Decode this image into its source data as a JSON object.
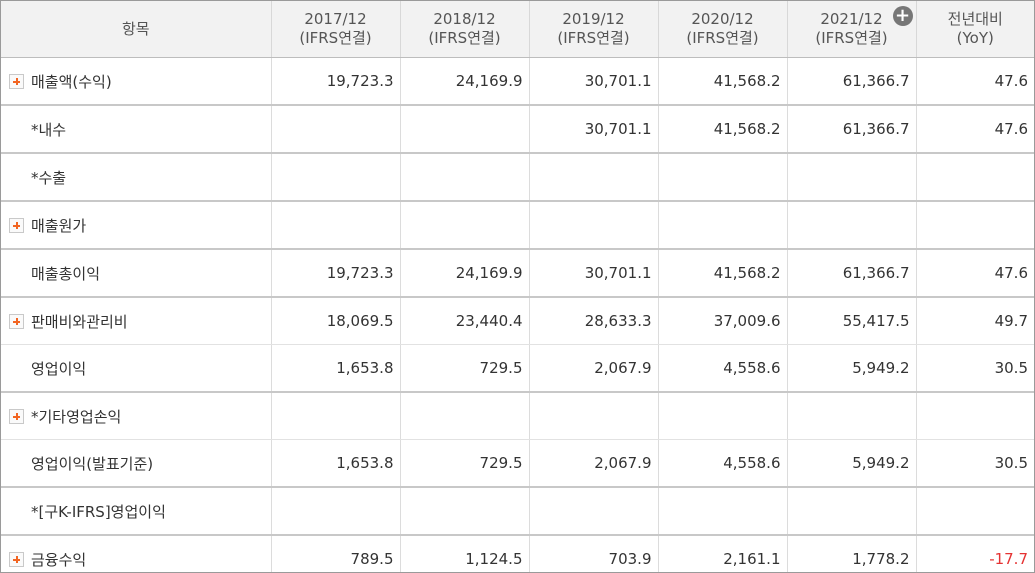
{
  "header": {
    "item_label": "항목",
    "periods": [
      {
        "year": "2017/12",
        "basis": "(IFRS연결)"
      },
      {
        "year": "2018/12",
        "basis": "(IFRS연결)"
      },
      {
        "year": "2019/12",
        "basis": "(IFRS연결)"
      },
      {
        "year": "2020/12",
        "basis": "(IFRS연결)"
      },
      {
        "year": "2021/12",
        "basis": "(IFRS연결)"
      }
    ],
    "yoy_line1": "전년대비",
    "yoy_line2": "(YoY)",
    "more_icon": "plus-circle-icon"
  },
  "rows": [
    {
      "label": "매출액(수익)",
      "expandable": true,
      "values": [
        "19,723.3",
        "24,169.9",
        "30,701.1",
        "41,568.2",
        "61,366.7"
      ],
      "yoy": "47.6"
    },
    {
      "label": "*내수",
      "expandable": false,
      "values": [
        "",
        "",
        "30,701.1",
        "41,568.2",
        "61,366.7"
      ],
      "yoy": "47.6"
    },
    {
      "label": "*수출",
      "expandable": false,
      "values": [
        "",
        "",
        "",
        "",
        ""
      ],
      "yoy": ""
    },
    {
      "label": "매출원가",
      "expandable": true,
      "values": [
        "",
        "",
        "",
        "",
        ""
      ],
      "yoy": ""
    },
    {
      "label": "매출총이익",
      "expandable": false,
      "values": [
        "19,723.3",
        "24,169.9",
        "30,701.1",
        "41,568.2",
        "61,366.7"
      ],
      "yoy": "47.6"
    },
    {
      "label": "판매비와관리비",
      "expandable": true,
      "values": [
        "18,069.5",
        "23,440.4",
        "28,633.3",
        "37,009.6",
        "55,417.5"
      ],
      "yoy": "49.7"
    },
    {
      "label": "영업이익",
      "expandable": false,
      "values": [
        "1,653.8",
        "729.5",
        "2,067.9",
        "4,558.6",
        "5,949.2"
      ],
      "yoy": "30.5"
    },
    {
      "label": "*기타영업손익",
      "expandable": true,
      "values": [
        "",
        "",
        "",
        "",
        ""
      ],
      "yoy": ""
    },
    {
      "label": "영업이익(발표기준)",
      "expandable": false,
      "values": [
        "1,653.8",
        "729.5",
        "2,067.9",
        "4,558.6",
        "5,949.2"
      ],
      "yoy": "30.5"
    },
    {
      "label": "*[구K-IFRS]영업이익",
      "expandable": false,
      "values": [
        "",
        "",
        "",
        "",
        ""
      ],
      "yoy": ""
    },
    {
      "label": "금융수익",
      "expandable": true,
      "values": [
        "789.5",
        "1,124.5",
        "703.9",
        "2,161.1",
        "1,778.2"
      ],
      "yoy": "-17.7"
    }
  ],
  "colors": {
    "expand_icon": "#f26522",
    "negative": "#e53333",
    "header_bg": "#f2f2f2"
  }
}
